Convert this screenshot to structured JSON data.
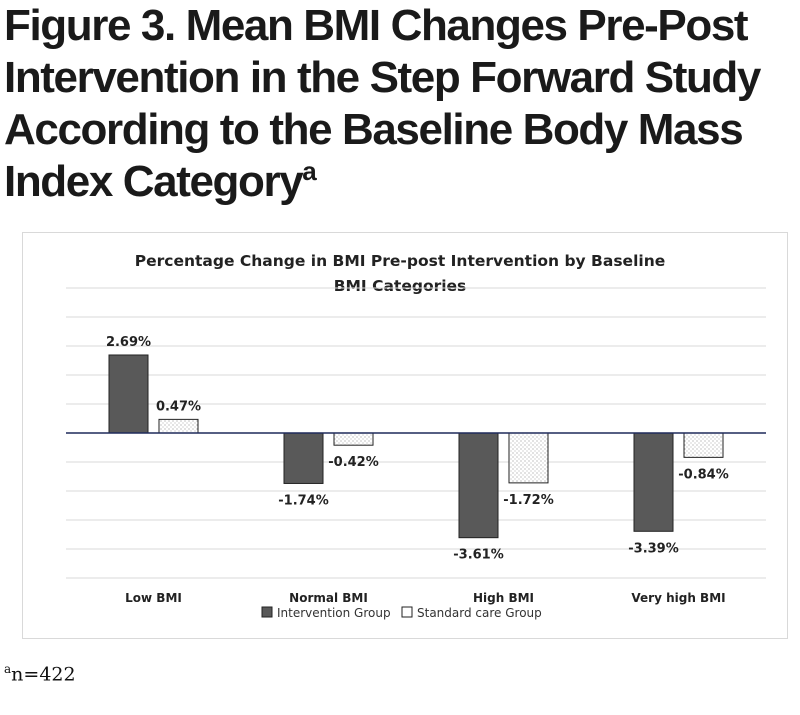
{
  "figure": {
    "title_lines": [
      "Figure 3. Mean BMI Changes Pre-Post",
      "Intervention in the Step Forward Study",
      "According to the Baseline Body Mass",
      "Index Category"
    ],
    "title_superscript": "a",
    "footnote_marker": "a",
    "footnote_text": "n=422"
  },
  "chart_data": {
    "type": "bar",
    "title_lines": [
      "Percentage Change in BMI Pre-post Intervention by Baseline",
      "BMI Categories"
    ],
    "xlabel": "",
    "ylabel": "",
    "categories": [
      "Low BMI",
      "Normal BMI",
      "High BMI",
      "Very high BMI"
    ],
    "series": [
      {
        "name": "Intervention Group",
        "values": [
          2.69,
          -1.74,
          -3.61,
          -3.39
        ],
        "labels": [
          "2.69%",
          "-1.74%",
          "-3.61%",
          "-3.39%"
        ],
        "color": "#595959",
        "pattern": "solid"
      },
      {
        "name": "Standard care Group",
        "values": [
          0.47,
          -0.42,
          -1.72,
          -0.84
        ],
        "labels": [
          "0.47%",
          "-0.42%",
          "-1.72%",
          "-0.84%"
        ],
        "color": "#ffffff",
        "pattern": "dotted"
      }
    ],
    "ylim": [
      -5,
      5
    ],
    "y_axis_labels_shown": false,
    "grid": true,
    "zero_line_color": "#1f2a5a",
    "legend_position": "bottom"
  }
}
